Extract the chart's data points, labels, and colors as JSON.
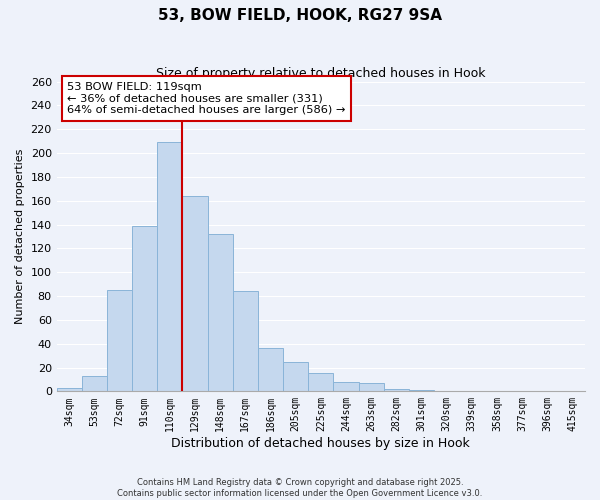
{
  "title": "53, BOW FIELD, HOOK, RG27 9SA",
  "subtitle": "Size of property relative to detached houses in Hook",
  "xlabel": "Distribution of detached houses by size in Hook",
  "ylabel": "Number of detached properties",
  "bar_color": "#c5d8ee",
  "bar_edge_color": "#8ab4d8",
  "background_color": "#eef2fa",
  "grid_color": "#ffffff",
  "categories": [
    "34sqm",
    "53sqm",
    "72sqm",
    "91sqm",
    "110sqm",
    "129sqm",
    "148sqm",
    "167sqm",
    "186sqm",
    "205sqm",
    "225sqm",
    "244sqm",
    "263sqm",
    "282sqm",
    "301sqm",
    "320sqm",
    "339sqm",
    "358sqm",
    "377sqm",
    "396sqm",
    "415sqm"
  ],
  "values": [
    3,
    13,
    85,
    139,
    209,
    164,
    132,
    84,
    36,
    25,
    15,
    8,
    7,
    2,
    1,
    0,
    0,
    0,
    0,
    0,
    0
  ],
  "ylim": [
    0,
    260
  ],
  "yticks": [
    0,
    20,
    40,
    60,
    80,
    100,
    120,
    140,
    160,
    180,
    200,
    220,
    240,
    260
  ],
  "vline_x_index": 4,
  "vline_color": "#cc0000",
  "annotation_title": "53 BOW FIELD: 119sqm",
  "annotation_line1": "← 36% of detached houses are smaller (331)",
  "annotation_line2": "64% of semi-detached houses are larger (586) →",
  "annotation_box_color": "#ffffff",
  "annotation_box_edge": "#cc0000",
  "footer_line1": "Contains HM Land Registry data © Crown copyright and database right 2025.",
  "footer_line2": "Contains public sector information licensed under the Open Government Licence v3.0."
}
